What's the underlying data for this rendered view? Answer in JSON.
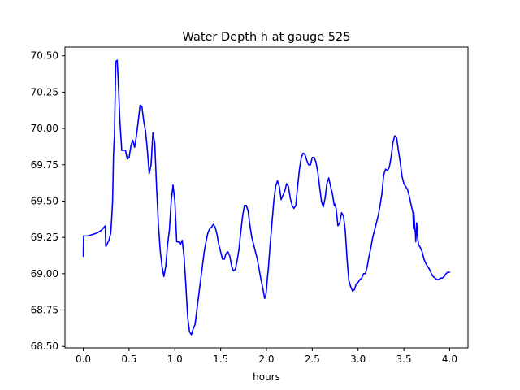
{
  "chart_data": {
    "type": "line",
    "title": "Water Depth h at gauge 525",
    "xlabel": "hours",
    "ylabel": "",
    "xlim": [
      -0.2,
      4.2
    ],
    "ylim": [
      68.49,
      70.56
    ],
    "xticks": [
      0.0,
      0.5,
      1.0,
      1.5,
      2.0,
      2.5,
      3.0,
      3.5,
      4.0
    ],
    "xtick_labels": [
      "0.0",
      "0.5",
      "1.0",
      "1.5",
      "2.0",
      "2.5",
      "3.0",
      "3.5",
      "4.0"
    ],
    "yticks": [
      68.5,
      68.75,
      69.0,
      69.25,
      69.5,
      69.75,
      70.0,
      70.25,
      70.5
    ],
    "ytick_labels": [
      "68.50",
      "68.75",
      "69.00",
      "69.25",
      "69.50",
      "69.75",
      "70.00",
      "70.25",
      "70.50"
    ],
    "grid": false,
    "legend": "none",
    "series": [
      {
        "color": "#0000ff",
        "x": [
          0.0,
          0.003,
          0.006,
          0.02,
          0.05,
          0.1,
          0.15,
          0.2,
          0.24,
          0.245,
          0.25,
          0.28,
          0.3,
          0.31,
          0.32,
          0.33,
          0.34,
          0.355,
          0.37,
          0.38,
          0.4,
          0.42,
          0.44,
          0.46,
          0.48,
          0.5,
          0.52,
          0.54,
          0.56,
          0.58,
          0.6,
          0.62,
          0.64,
          0.66,
          0.68,
          0.7,
          0.72,
          0.74,
          0.76,
          0.78,
          0.8,
          0.82,
          0.84,
          0.86,
          0.88,
          0.9,
          0.92,
          0.94,
          0.96,
          0.98,
          1.0,
          1.02,
          1.04,
          1.06,
          1.08,
          1.1,
          1.12,
          1.14,
          1.16,
          1.18,
          1.2,
          1.22,
          1.24,
          1.26,
          1.28,
          1.3,
          1.32,
          1.34,
          1.36,
          1.38,
          1.4,
          1.42,
          1.44,
          1.46,
          1.48,
          1.5,
          1.52,
          1.54,
          1.56,
          1.58,
          1.6,
          1.62,
          1.64,
          1.66,
          1.68,
          1.7,
          1.72,
          1.74,
          1.76,
          1.78,
          1.8,
          1.82,
          1.84,
          1.86,
          1.88,
          1.9,
          1.92,
          1.94,
          1.96,
          1.98,
          1.99,
          2.0,
          2.01,
          2.02,
          2.04,
          2.06,
          2.08,
          2.1,
          2.12,
          2.14,
          2.16,
          2.18,
          2.2,
          2.22,
          2.24,
          2.26,
          2.28,
          2.3,
          2.32,
          2.34,
          2.36,
          2.38,
          2.4,
          2.42,
          2.44,
          2.46,
          2.48,
          2.5,
          2.52,
          2.54,
          2.56,
          2.58,
          2.6,
          2.62,
          2.64,
          2.66,
          2.68,
          2.7,
          2.72,
          2.74,
          2.745,
          2.76,
          2.78,
          2.8,
          2.82,
          2.84,
          2.86,
          2.88,
          2.9,
          2.92,
          2.94,
          2.96,
          2.98,
          3.0,
          3.02,
          3.04,
          3.06,
          3.08,
          3.1,
          3.12,
          3.14,
          3.16,
          3.18,
          3.2,
          3.22,
          3.24,
          3.26,
          3.28,
          3.3,
          3.32,
          3.34,
          3.36,
          3.38,
          3.4,
          3.42,
          3.44,
          3.46,
          3.48,
          3.5,
          3.52,
          3.54,
          3.56,
          3.58,
          3.6,
          3.605,
          3.61,
          3.62,
          3.625,
          3.63,
          3.64,
          3.65,
          3.66,
          3.68,
          3.7,
          3.72,
          3.74,
          3.76,
          3.78,
          3.8,
          3.82,
          3.84,
          3.86,
          3.88,
          3.9,
          3.92,
          3.94,
          3.96,
          3.98,
          4.0
        ],
        "y": [
          69.12,
          69.26,
          69.26,
          69.26,
          69.26,
          69.27,
          69.28,
          69.3,
          69.33,
          69.19,
          69.19,
          69.23,
          69.28,
          69.38,
          69.5,
          69.82,
          69.95,
          70.46,
          70.47,
          70.35,
          70.05,
          69.85,
          69.85,
          69.85,
          69.79,
          69.8,
          69.88,
          69.92,
          69.87,
          69.95,
          70.05,
          70.16,
          70.15,
          70.05,
          69.98,
          69.85,
          69.69,
          69.75,
          69.97,
          69.9,
          69.6,
          69.34,
          69.16,
          69.05,
          68.98,
          69.05,
          69.2,
          69.3,
          69.5,
          69.61,
          69.5,
          69.22,
          69.22,
          69.2,
          69.23,
          69.12,
          68.92,
          68.7,
          68.6,
          68.58,
          68.62,
          68.65,
          68.75,
          68.85,
          68.95,
          69.05,
          69.15,
          69.22,
          69.28,
          69.31,
          69.32,
          69.34,
          69.32,
          69.27,
          69.2,
          69.15,
          69.1,
          69.1,
          69.14,
          69.15,
          69.12,
          69.05,
          69.02,
          69.03,
          69.09,
          69.17,
          69.29,
          69.4,
          69.47,
          69.47,
          69.43,
          69.33,
          69.25,
          69.2,
          69.15,
          69.1,
          69.03,
          68.96,
          68.9,
          68.83,
          68.84,
          68.89,
          68.97,
          69.03,
          69.2,
          69.35,
          69.5,
          69.6,
          69.64,
          69.6,
          69.51,
          69.54,
          69.57,
          69.62,
          69.6,
          69.52,
          69.47,
          69.45,
          69.47,
          69.6,
          69.72,
          69.8,
          69.83,
          69.82,
          69.78,
          69.75,
          69.75,
          69.8,
          69.8,
          69.77,
          69.7,
          69.6,
          69.5,
          69.46,
          69.52,
          69.62,
          69.66,
          69.6,
          69.55,
          69.47,
          69.48,
          69.45,
          69.33,
          69.35,
          69.42,
          69.4,
          69.3,
          69.1,
          68.95,
          68.91,
          68.88,
          68.89,
          68.93,
          68.94,
          68.96,
          68.97,
          69.0,
          69.0,
          69.05,
          69.12,
          69.18,
          69.25,
          69.3,
          69.35,
          69.4,
          69.47,
          69.55,
          69.68,
          69.72,
          69.71,
          69.73,
          69.8,
          69.9,
          69.95,
          69.94,
          69.85,
          69.77,
          69.67,
          69.62,
          69.6,
          69.58,
          69.53,
          69.47,
          69.42,
          69.31,
          69.42,
          69.3,
          69.29,
          69.22,
          69.35,
          69.25,
          69.2,
          69.18,
          69.15,
          69.1,
          69.07,
          69.05,
          69.03,
          69.0,
          68.98,
          68.97,
          68.96,
          68.96,
          68.97,
          68.97,
          68.98,
          69.0,
          69.01,
          69.01
        ]
      }
    ]
  }
}
